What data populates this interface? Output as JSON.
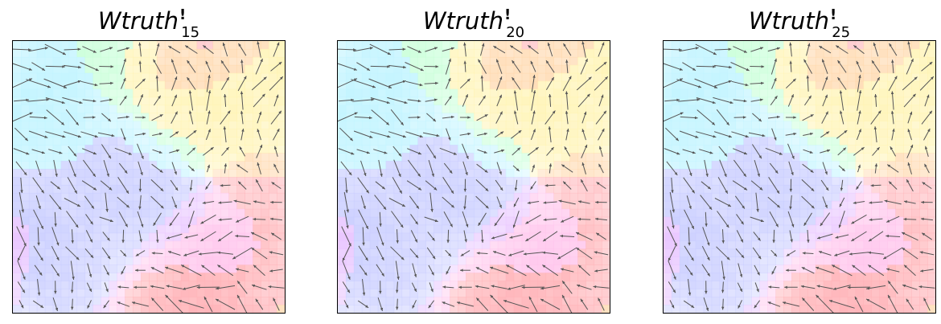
{
  "figure": {
    "panels": [
      {
        "title_base": "Wtruth",
        "title_mark": "!",
        "title_sub": "15"
      },
      {
        "title_base": "Wtruth",
        "title_mark": "!",
        "title_sub": "20"
      },
      {
        "title_base": "Wtruth",
        "title_mark": "!",
        "title_sub": "25"
      }
    ]
  },
  "chart_data": [
    {
      "type": "quiver",
      "title": "Wtruth!15",
      "background": "hue-encoded vector field (pastel color wheel)",
      "axes": {
        "ticks": "none",
        "grid": false,
        "legend": "none"
      },
      "grid_size": [
        16,
        16
      ],
      "arrow_color": "#555555",
      "palette": [
        "#ffb3b8",
        "#ffd6a8",
        "#fff3b0",
        "#c8ffd8",
        "#c2f4ff",
        "#c8ccff",
        "#e8c4ff",
        "#ffc4ec"
      ]
    },
    {
      "type": "quiver",
      "title": "Wtruth!20",
      "background": "hue-encoded vector field (pastel color wheel)",
      "axes": {
        "ticks": "none",
        "grid": false,
        "legend": "none"
      },
      "grid_size": [
        16,
        16
      ],
      "arrow_color": "#555555",
      "palette": [
        "#ffb3b8",
        "#ffd6a8",
        "#fff3b0",
        "#c8ffd8",
        "#c2f4ff",
        "#c8ccff",
        "#e8c4ff",
        "#ffc4ec"
      ]
    },
    {
      "type": "quiver",
      "title": "Wtruth!25",
      "background": "hue-encoded vector field (pastel color wheel)",
      "axes": {
        "ticks": "none",
        "grid": false,
        "legend": "none"
      },
      "grid_size": [
        16,
        16
      ],
      "arrow_color": "#555555",
      "palette": [
        "#ffb3b8",
        "#ffd6a8",
        "#fff3b0",
        "#c8ffd8",
        "#c2f4ff",
        "#c8ccff",
        "#e8c4ff",
        "#ffc4ec"
      ]
    }
  ]
}
